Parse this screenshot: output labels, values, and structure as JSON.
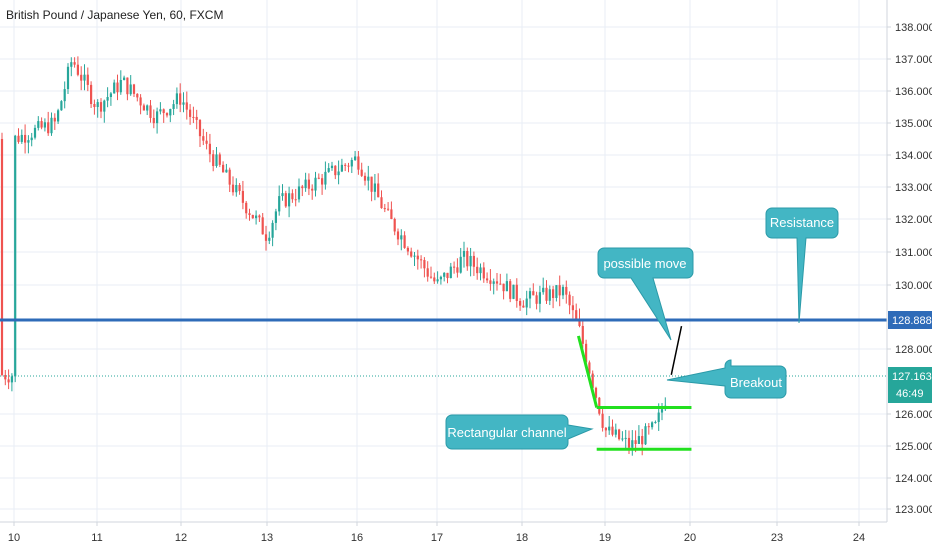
{
  "title": "British Pound / Japanese Yen, 60, FXCM",
  "colors": {
    "up": "#26a69a",
    "down": "#ef5350",
    "resistance": "#2e6bb8",
    "channel": "#22e01f",
    "callout_fill": "#43b6c4",
    "callout_stroke": "#2b9aa8",
    "grid": "#e9eef5",
    "dotted": "#26a69a",
    "move_line": "#000000"
  },
  "price_axis": {
    "labels": [
      "138.000",
      "137.000",
      "136.000",
      "135.000",
      "134.000",
      "133.000",
      "132.000",
      "131.000",
      "130.000",
      "128.000",
      "126.000",
      "125.000",
      "124.000",
      "123.000"
    ],
    "resistance_badge": "128.888",
    "last_price_badge": "127.163",
    "countdown_badge": "46:49"
  },
  "time_axis": {
    "labels": [
      "10",
      "11",
      "12",
      "13",
      "16",
      "17",
      "18",
      "19",
      "20",
      "23",
      "24"
    ]
  },
  "annotations": {
    "resistance": "Resistance",
    "possible_move": "possible move",
    "breakout": "Breakout",
    "channel": "Rectangular channel"
  },
  "chart_data": {
    "type": "candlestick",
    "title": "British Pound / Japanese Yen, 60, FXCM",
    "ylim": [
      122.8,
      138.4
    ],
    "x_ticks": [
      "10",
      "11",
      "12",
      "13",
      "16",
      "17",
      "18",
      "19",
      "20",
      "23",
      "24"
    ],
    "y_ticks": [
      138,
      137,
      136,
      135,
      134,
      133,
      132,
      131,
      130,
      128,
      126,
      125,
      124,
      123
    ],
    "resistance_level": 128.888,
    "last_price": 127.163,
    "channel": {
      "top": 126.2,
      "bottom": 124.9,
      "x_start": "19",
      "x_end": "20"
    },
    "path": [
      [
        "10",
        134.5
      ],
      [
        "10.5",
        135.0
      ],
      [
        "10.7",
        137.0
      ],
      [
        "11",
        135.5
      ],
      [
        "11.3",
        136.3
      ],
      [
        "11.7",
        135.2
      ],
      [
        "12",
        135.8
      ],
      [
        "12.3",
        134.2
      ],
      [
        "12.6",
        133.0
      ],
      [
        "13",
        131.5
      ],
      [
        "13.4",
        132.5
      ],
      [
        "16",
        133.9
      ],
      [
        "16.4",
        132.0
      ],
      [
        "17",
        130.0
      ],
      [
        "17.3",
        130.8
      ],
      [
        "17.7",
        130.2
      ],
      [
        "18",
        129.5
      ],
      [
        "18.5",
        129.8
      ],
      [
        "18.7",
        128.5
      ],
      [
        "19",
        125.5
      ],
      [
        "19.3",
        125.0
      ],
      [
        "19.6",
        125.6
      ],
      [
        "19.8",
        127.2
      ]
    ],
    "grid": true
  }
}
